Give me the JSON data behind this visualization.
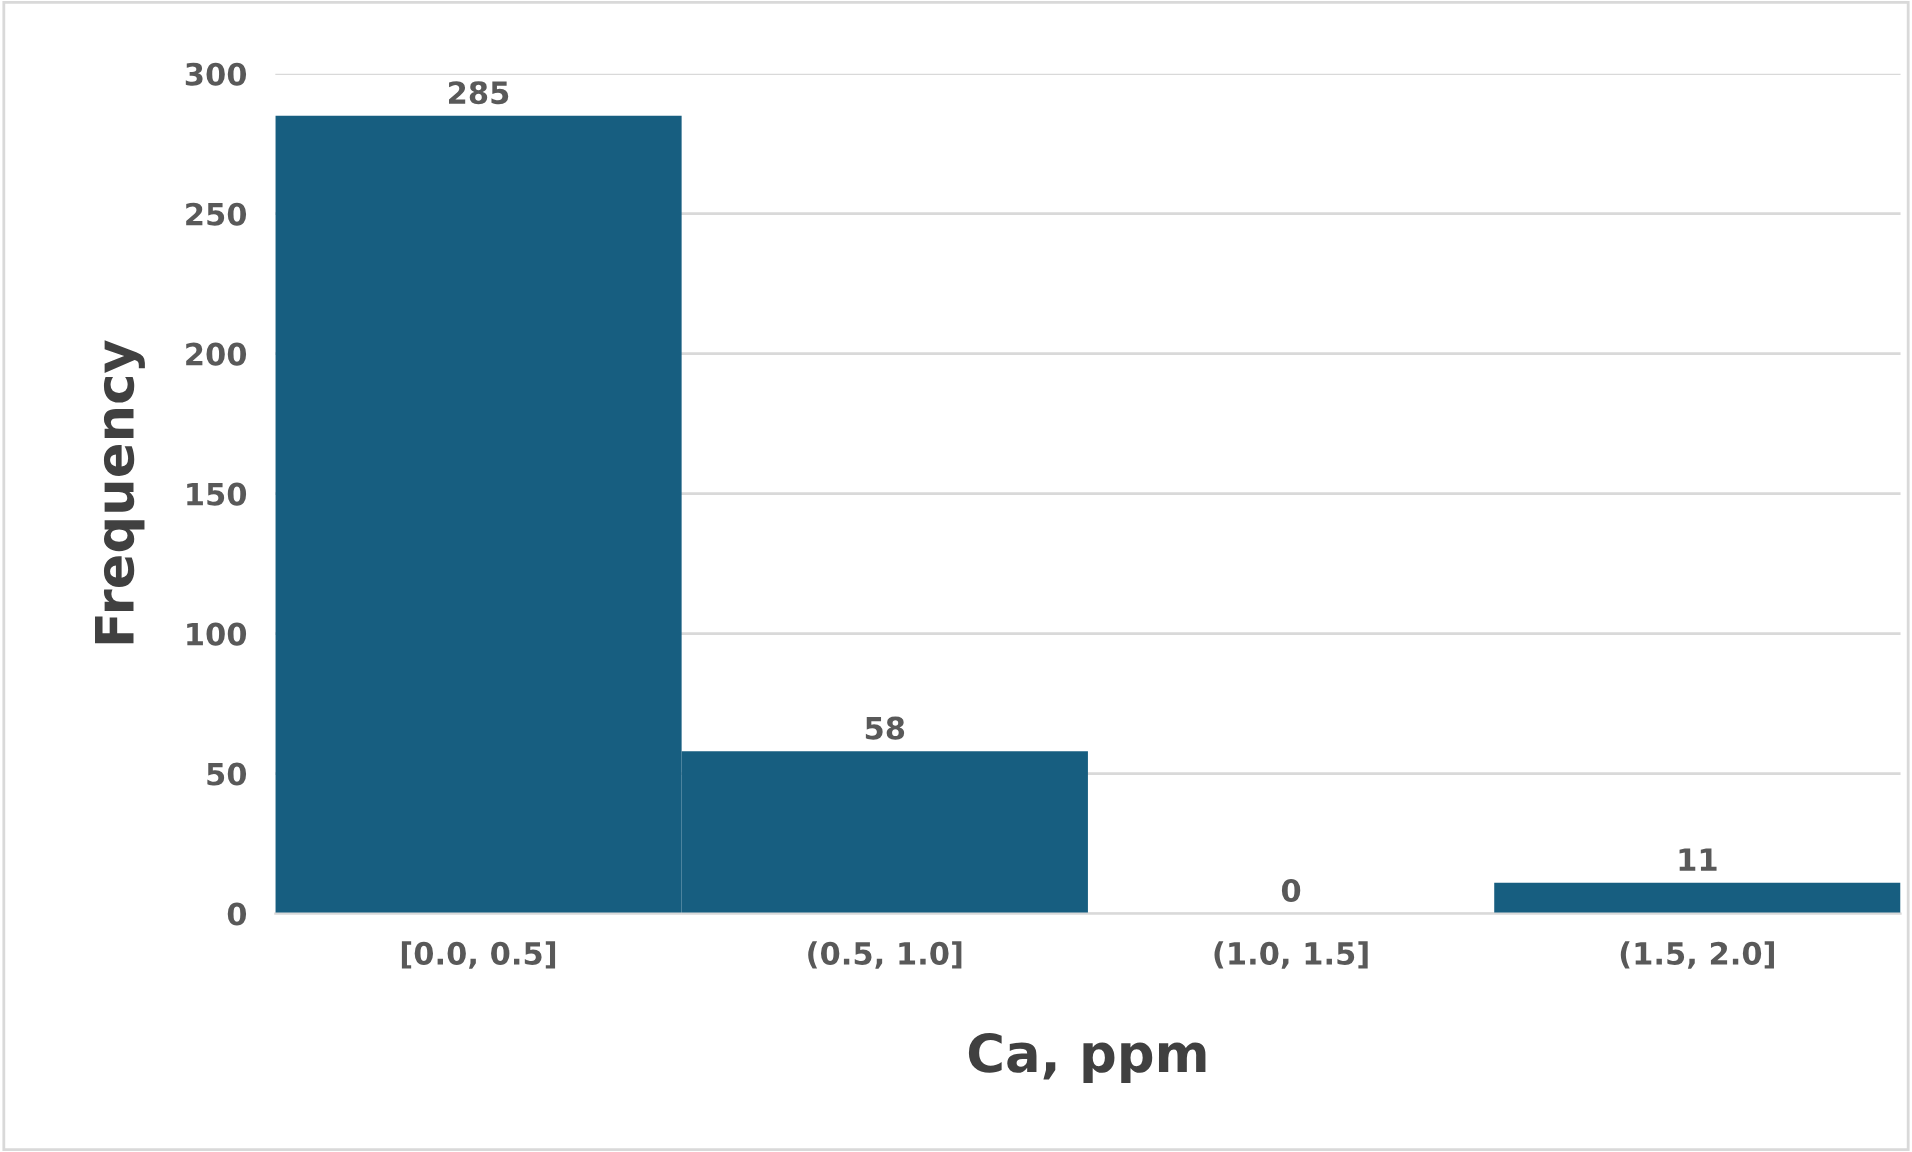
{
  "chart_data": {
    "type": "bar",
    "xlabel": "Ca, ppm",
    "ylabel": "Frequency",
    "categories": [
      "[0.0, 0.5]",
      "(0.5, 1.0]",
      "(1.0, 1.5]",
      "(1.5, 2.0]"
    ],
    "values": [
      285,
      58,
      0,
      11
    ],
    "color": "#175e80",
    "ylim": [
      0,
      300
    ],
    "yticks": [
      0,
      50,
      100,
      150,
      200,
      250,
      300
    ],
    "grid": "y",
    "data_labels": true
  }
}
